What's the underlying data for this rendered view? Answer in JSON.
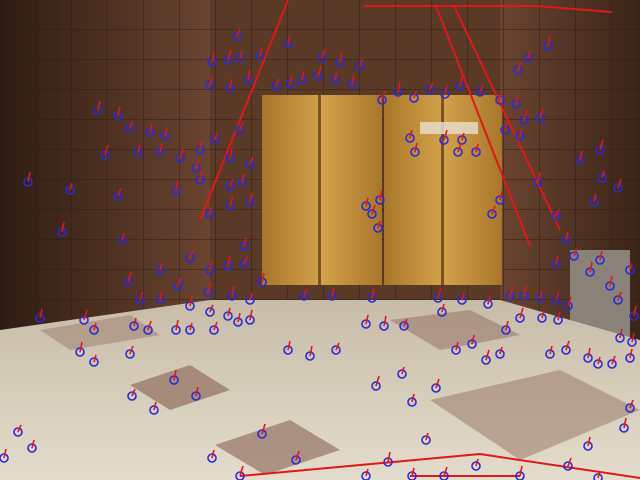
{
  "image": {
    "scene": "elevator-lobby",
    "overlay": {
      "keypoint_color": "#2a2ad8",
      "flow_color": "#e01818"
    },
    "palette": {
      "wall_dark": "#3a2418",
      "wall_mid": "#5a3a26",
      "door_gold": "#b8862e",
      "door_light": "#d4a24a",
      "floor_light": "#d8cfc0",
      "floor_tile": "#9a7a6a"
    }
  }
}
